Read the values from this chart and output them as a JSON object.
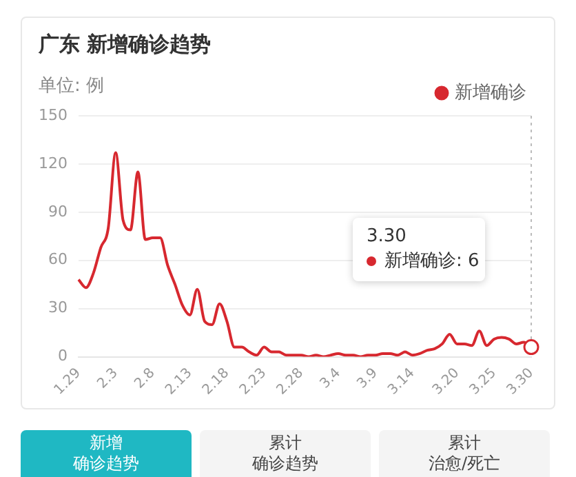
{
  "chart_data": {
    "type": "line",
    "title": "广东 新增确诊趋势",
    "subtitle": "单位: 例",
    "categories": [
      "1.29",
      null,
      null,
      null,
      null,
      "2.3",
      null,
      null,
      null,
      null,
      "2.8",
      null,
      null,
      null,
      null,
      "2.13",
      null,
      null,
      null,
      null,
      "2.18",
      null,
      null,
      null,
      null,
      "2.23",
      null,
      null,
      null,
      null,
      "2.28",
      null,
      null,
      null,
      null,
      "3.4",
      null,
      null,
      null,
      null,
      "3.9",
      null,
      null,
      null,
      null,
      "3.14",
      null,
      null,
      null,
      null,
      null,
      "3.20",
      null,
      null,
      null,
      null,
      "3.25",
      null,
      null,
      null,
      null,
      "3.30"
    ],
    "series": [
      {
        "name": "新增确诊",
        "color": "#d7282f",
        "values": [
          48,
          43,
          52,
          68,
          80,
          127,
          85,
          79,
          115,
          73,
          74,
          74,
          57,
          45,
          32,
          26,
          42,
          22,
          20,
          33,
          22,
          6,
          6,
          3,
          1,
          6,
          3,
          3,
          1,
          1,
          1,
          0,
          1,
          0,
          1,
          2,
          1,
          1,
          0,
          1,
          1,
          2,
          2,
          1,
          3,
          1,
          2,
          4,
          5,
          8,
          14,
          8,
          8,
          7,
          16,
          7,
          11,
          12,
          11,
          8,
          9,
          6
        ]
      }
    ],
    "ylim": [
      0,
      150
    ],
    "yticks": [
      0,
      30,
      60,
      90,
      120,
      150
    ],
    "grid": "y",
    "legend": "top right",
    "marker": "none",
    "line_style": "solid",
    "ref_lines": [
      {
        "axis": "x",
        "value": "3.30",
        "color": "#bbbbbb",
        "line_style": "dotted"
      }
    ],
    "annotations": [
      "3.30\n新增确诊: 6",
      "新增",
      "确诊趋势",
      "累计",
      "确诊趋势",
      "累计",
      "治愈/死亡"
    ]
  }
}
